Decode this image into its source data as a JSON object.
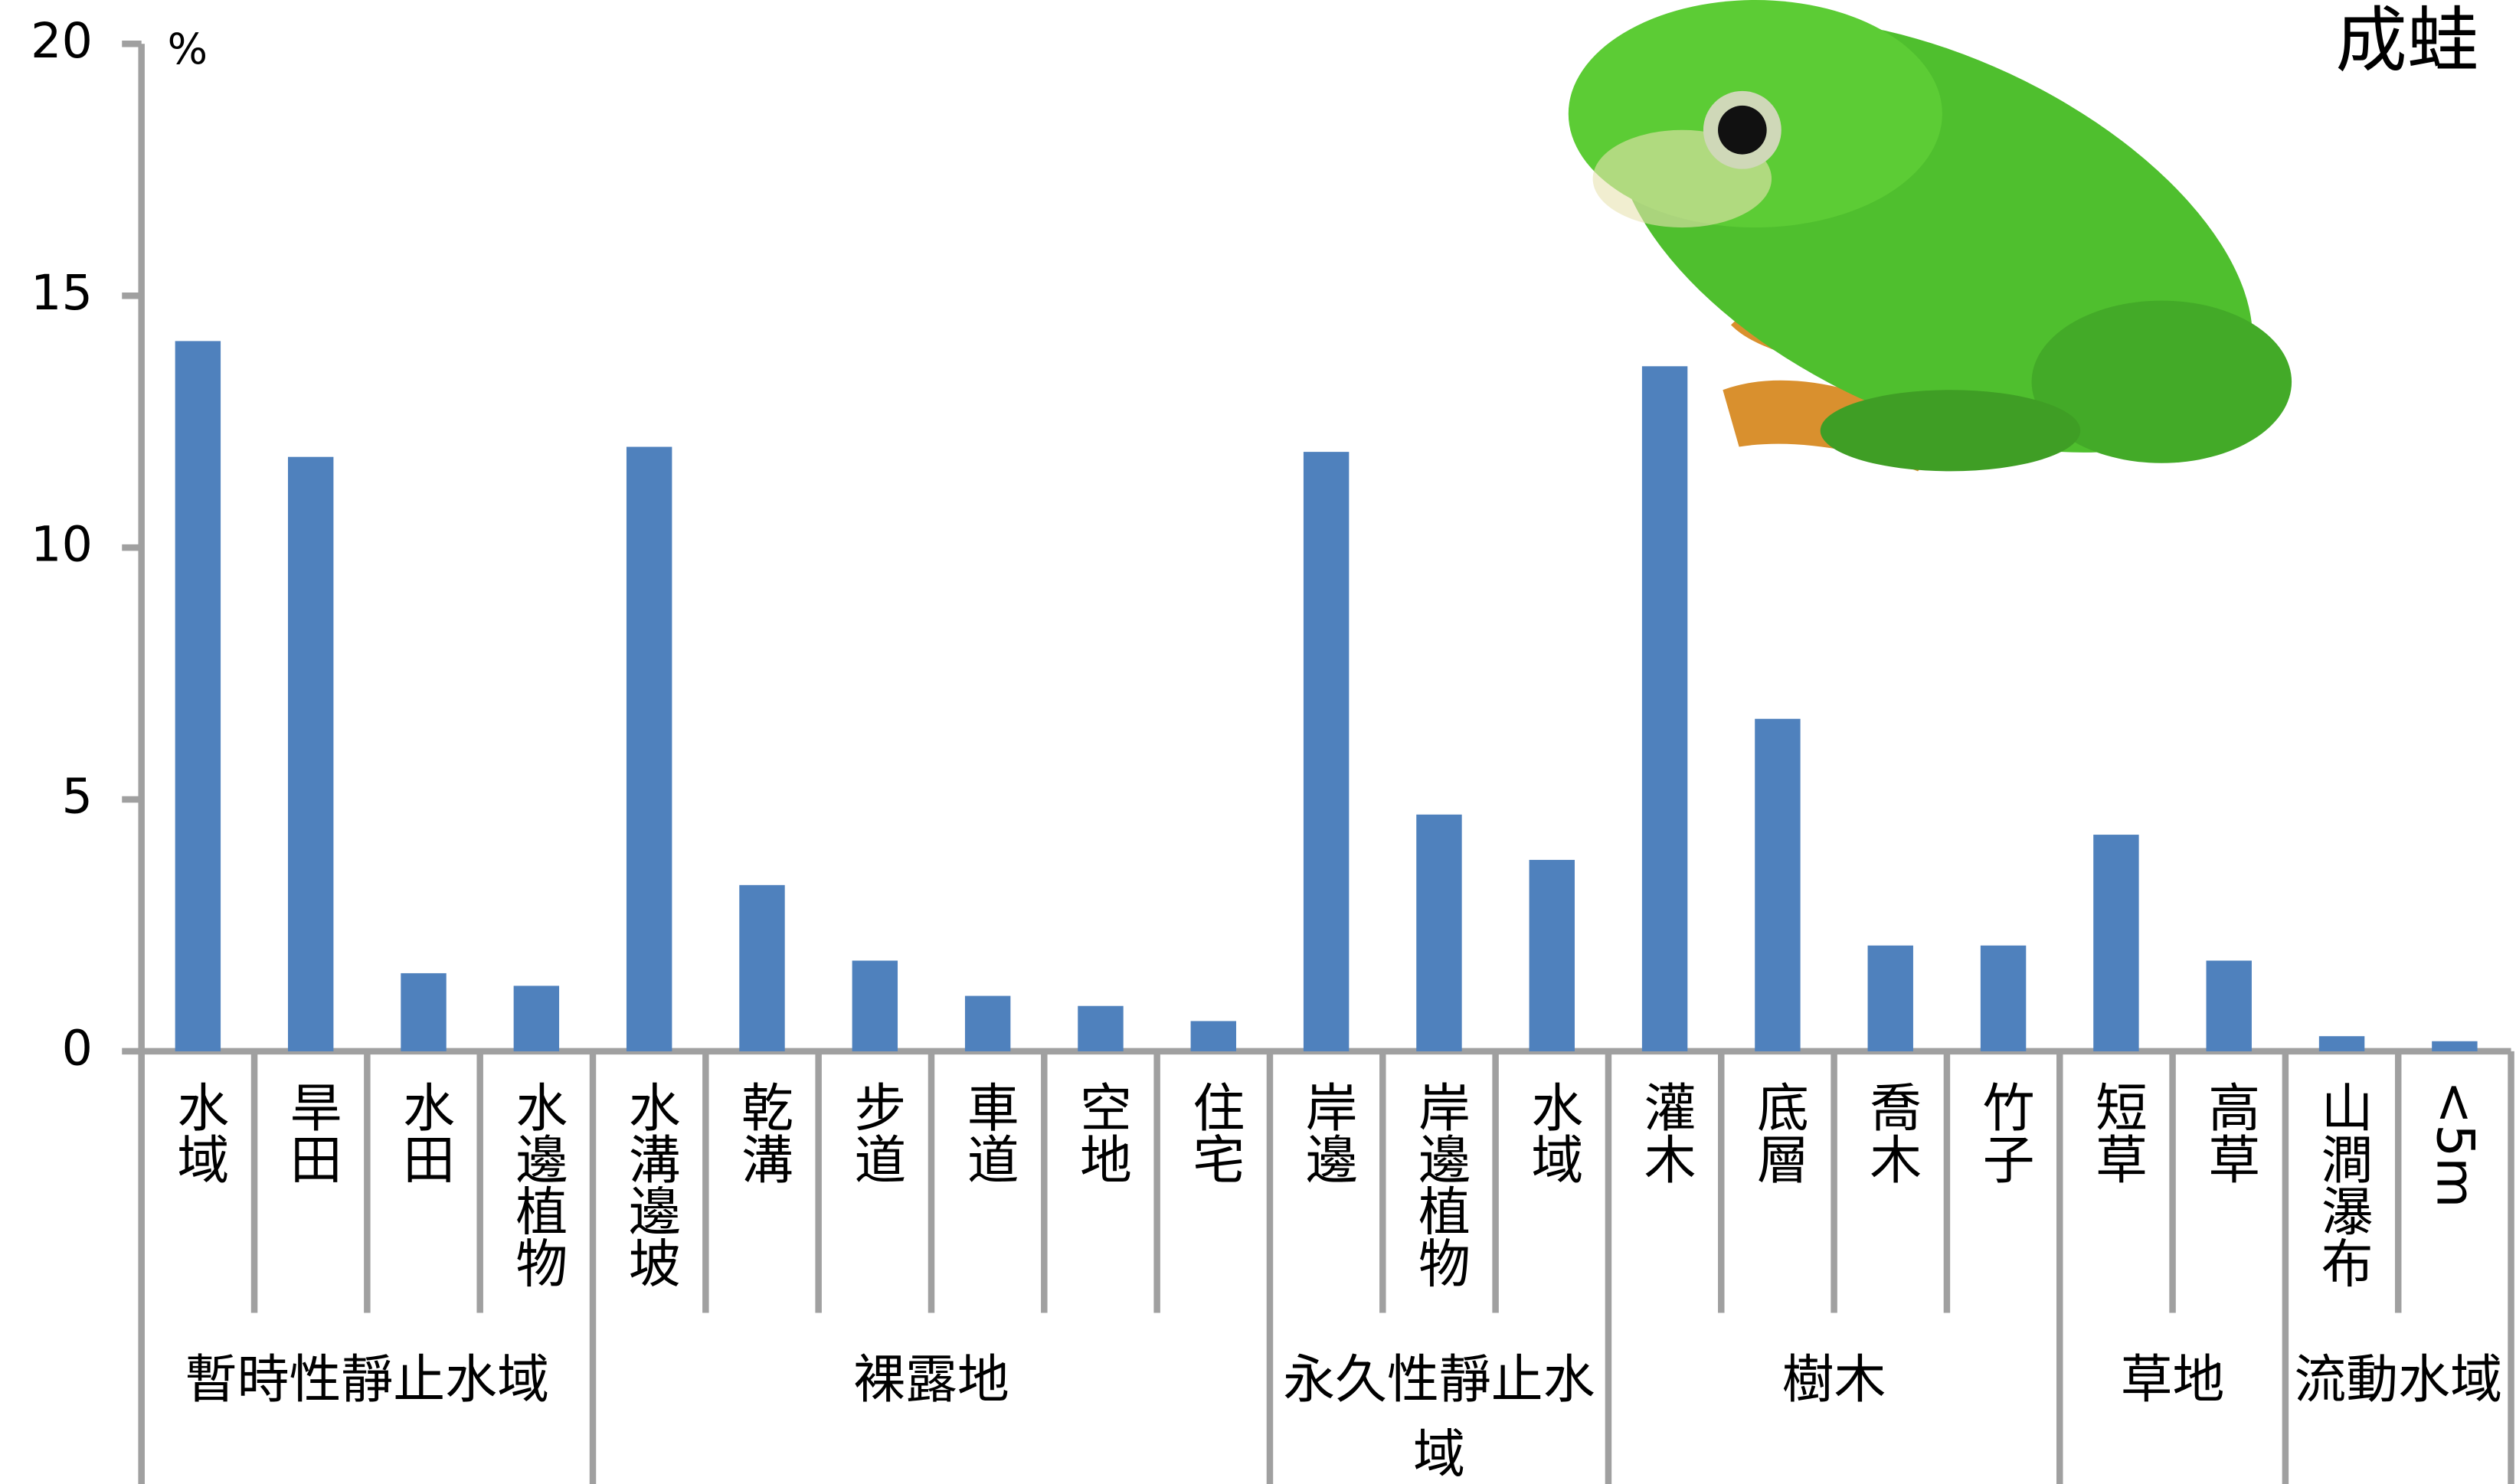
{
  "chart_data": {
    "type": "bar",
    "title": "成蛙",
    "y_unit": "%",
    "categories": [
      "水域",
      "旱田",
      "水田",
      "水邊植物",
      "水溝邊坡",
      "乾溝",
      "步道",
      "車道",
      "空地",
      "住宅",
      "岸邊",
      "岸邊植物",
      "水域",
      "灌木",
      "底層",
      "喬木",
      "竹子",
      "短草",
      "高草",
      "山澗瀑布",
      "<5m"
    ],
    "groups": [
      {
        "name": "暫時性靜止水域",
        "count": 4
      },
      {
        "name": "裸露地",
        "count": 6
      },
      {
        "name": "永久性靜止水域",
        "count": 3
      },
      {
        "name": "樹木",
        "count": 4
      },
      {
        "name": "草地",
        "count": 2
      },
      {
        "name": "流動水域",
        "count": 2
      }
    ],
    "values": [
      14.1,
      11.8,
      1.55,
      1.3,
      12.0,
      3.3,
      1.8,
      1.1,
      0.9,
      0.6,
      11.9,
      4.7,
      3.8,
      13.6,
      6.6,
      2.1,
      2.1,
      4.3,
      1.8,
      0.3,
      0.2
    ],
    "color": "#4f81bd",
    "ylim": [
      0,
      20
    ],
    "yticks": [
      0,
      5,
      10,
      15,
      20
    ]
  }
}
